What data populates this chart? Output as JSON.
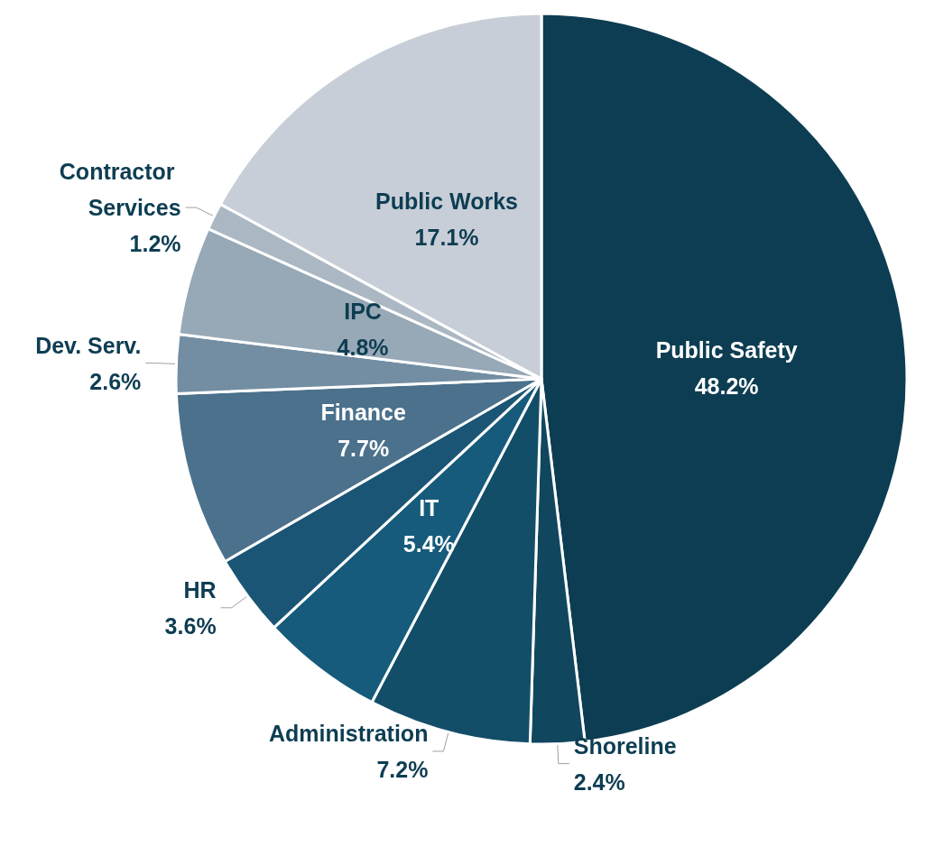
{
  "chart_data": {
    "type": "pie",
    "categories": [
      "Public Safety",
      "Shoreline",
      "Administration",
      "IT",
      "HR",
      "Finance",
      "Dev. Serv.",
      "IPC",
      "Contractor Services",
      "Public Works"
    ],
    "values": [
      48.2,
      2.4,
      7.2,
      5.4,
      3.6,
      7.7,
      2.6,
      4.8,
      1.2,
      17.1
    ],
    "value_labels": [
      "48.2%",
      "2.4%",
      "7.2%",
      "5.4%",
      "3.6%",
      "7.7%",
      "2.6%",
      "4.8%",
      "1.2%",
      "17.1%"
    ],
    "colors": [
      "#0d3d52",
      "#10475f",
      "#134e69",
      "#165b7b",
      "#1b5575",
      "#4b718c",
      "#738ea3",
      "#97a8b6",
      "#abb8c4",
      "#c8ced7"
    ],
    "legend": false
  }
}
